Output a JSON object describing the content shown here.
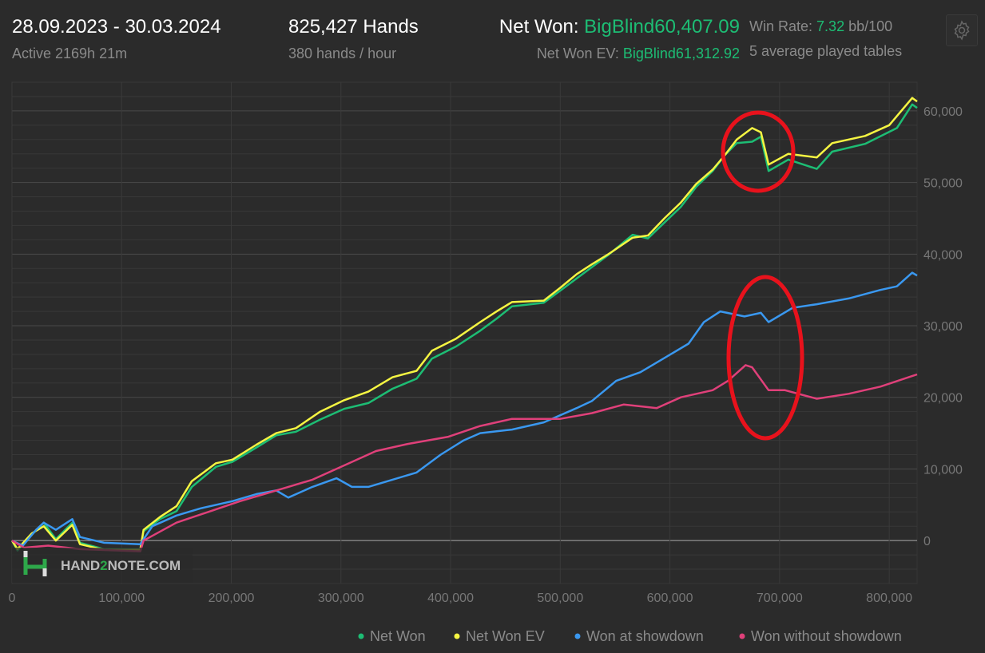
{
  "header": {
    "date_range": "28.09.2023 - 30.03.2024",
    "active": "Active 2169h 21m",
    "hands": "825,427 Hands",
    "hands_per_hour": "380 hands / hour",
    "net_won_label": "Net Won:",
    "net_won_value": "BigBlind60,407.09",
    "net_won_ev_label": "Net Won  EV:",
    "net_won_ev_value": "BigBlind61,312.92",
    "win_rate_label": "Win Rate:",
    "win_rate_value": "7.32",
    "win_rate_unit": "bb/100",
    "tables": "5 average played tables",
    "settings_icon": "gear-icon"
  },
  "watermark": {
    "text_a": "HAND",
    "text_b": "2",
    "text_c": "NOTE.COM"
  },
  "colors": {
    "net_won": "#1dbd74",
    "net_won_ev": "#f5f542",
    "showdown": "#3a98f0",
    "non_showdown": "#e0407a",
    "annotation": "#e8121c",
    "accent": "#1dbd74"
  },
  "chart_data": {
    "type": "line",
    "xlabel": "",
    "ylabel": "",
    "xlim": [
      0,
      825427
    ],
    "ylim": [
      -6000,
      64000
    ],
    "grid": true,
    "legend": "bottom-right",
    "x_ticks": [
      "0",
      "100,000",
      "200,000",
      "300,000",
      "400,000",
      "500,000",
      "600,000",
      "700,000",
      "800,000"
    ],
    "x_tick_values": [
      0,
      100000,
      200000,
      300000,
      400000,
      500000,
      600000,
      700000,
      800000
    ],
    "y_ticks": [
      "0",
      "10,000",
      "20,000",
      "30,000",
      "40,000",
      "50,000",
      "60,000"
    ],
    "y_tick_values": [
      0,
      10000,
      20000,
      30000,
      40000,
      50000,
      60000
    ],
    "series": [
      {
        "name": "Net Won",
        "color": "#1dbd74",
        "points": [
          [
            0,
            0
          ],
          [
            5000,
            -1400
          ],
          [
            18000,
            800
          ],
          [
            29000,
            2500
          ],
          [
            40000,
            200
          ],
          [
            55000,
            2500
          ],
          [
            62000,
            -300
          ],
          [
            84000,
            -1200
          ],
          [
            117000,
            -1200
          ],
          [
            120000,
            1300
          ],
          [
            135000,
            3000
          ],
          [
            150000,
            4100
          ],
          [
            164000,
            7500
          ],
          [
            186000,
            10300
          ],
          [
            201000,
            11000
          ],
          [
            223000,
            13000
          ],
          [
            241000,
            14700
          ],
          [
            259000,
            15200
          ],
          [
            281000,
            16900
          ],
          [
            303000,
            18400
          ],
          [
            325000,
            19200
          ],
          [
            347000,
            21200
          ],
          [
            369000,
            22600
          ],
          [
            383000,
            25400
          ],
          [
            405000,
            27100
          ],
          [
            427000,
            29300
          ],
          [
            442000,
            31000
          ],
          [
            456000,
            32700
          ],
          [
            485000,
            33200
          ],
          [
            500000,
            34900
          ],
          [
            515000,
            36600
          ],
          [
            529000,
            38200
          ],
          [
            544000,
            39900
          ],
          [
            566000,
            42700
          ],
          [
            580000,
            42200
          ],
          [
            595000,
            44400
          ],
          [
            610000,
            46600
          ],
          [
            624000,
            49400
          ],
          [
            639000,
            51600
          ],
          [
            650000,
            53800
          ],
          [
            661000,
            55500
          ],
          [
            675000,
            55700
          ],
          [
            683000,
            56400
          ],
          [
            690000,
            51600
          ],
          [
            708000,
            53200
          ],
          [
            734000,
            51900
          ],
          [
            748000,
            54300
          ],
          [
            778000,
            55400
          ],
          [
            807000,
            57600
          ],
          [
            821000,
            60900
          ],
          [
            825427,
            60407
          ]
        ]
      },
      {
        "name": "Net Won  EV",
        "color": "#f5f542",
        "points": [
          [
            0,
            0
          ],
          [
            5000,
            -1200
          ],
          [
            18000,
            1000
          ],
          [
            29000,
            2000
          ],
          [
            40000,
            0
          ],
          [
            55000,
            2200
          ],
          [
            62000,
            -500
          ],
          [
            84000,
            -1300
          ],
          [
            117000,
            -1300
          ],
          [
            120000,
            1500
          ],
          [
            135000,
            3300
          ],
          [
            150000,
            4800
          ],
          [
            164000,
            8300
          ],
          [
            186000,
            10800
          ],
          [
            201000,
            11300
          ],
          [
            223000,
            13400
          ],
          [
            241000,
            15000
          ],
          [
            259000,
            15700
          ],
          [
            281000,
            18000
          ],
          [
            303000,
            19600
          ],
          [
            325000,
            20800
          ],
          [
            347000,
            22800
          ],
          [
            369000,
            23700
          ],
          [
            383000,
            26500
          ],
          [
            405000,
            28200
          ],
          [
            427000,
            30500
          ],
          [
            442000,
            32000
          ],
          [
            456000,
            33300
          ],
          [
            485000,
            33500
          ],
          [
            500000,
            35300
          ],
          [
            515000,
            37200
          ],
          [
            529000,
            38600
          ],
          [
            544000,
            40000
          ],
          [
            566000,
            42300
          ],
          [
            580000,
            42600
          ],
          [
            595000,
            45000
          ],
          [
            610000,
            47200
          ],
          [
            624000,
            49800
          ],
          [
            639000,
            51800
          ],
          [
            650000,
            53800
          ],
          [
            661000,
            56000
          ],
          [
            675000,
            57600
          ],
          [
            683000,
            57000
          ],
          [
            690000,
            52500
          ],
          [
            708000,
            54000
          ],
          [
            734000,
            53500
          ],
          [
            748000,
            55500
          ],
          [
            778000,
            56500
          ],
          [
            800000,
            58000
          ],
          [
            821000,
            61800
          ],
          [
            825427,
            61313
          ]
        ]
      },
      {
        "name": "Won at showdown",
        "color": "#3a98f0",
        "points": [
          [
            0,
            0
          ],
          [
            10000,
            -700
          ],
          [
            22000,
            1500
          ],
          [
            29000,
            2500
          ],
          [
            40000,
            1500
          ],
          [
            55000,
            3000
          ],
          [
            62000,
            500
          ],
          [
            84000,
            -300
          ],
          [
            117000,
            -500
          ],
          [
            128000,
            2000
          ],
          [
            150000,
            3500
          ],
          [
            172000,
            4500
          ],
          [
            201000,
            5500
          ],
          [
            223000,
            6500
          ],
          [
            241000,
            7000
          ],
          [
            252000,
            6000
          ],
          [
            274000,
            7500
          ],
          [
            296000,
            8700
          ],
          [
            310000,
            7500
          ],
          [
            325000,
            7500
          ],
          [
            347000,
            8500
          ],
          [
            369000,
            9500
          ],
          [
            391000,
            12000
          ],
          [
            412000,
            14000
          ],
          [
            427000,
            15000
          ],
          [
            456000,
            15500
          ],
          [
            485000,
            16500
          ],
          [
            515000,
            18500
          ],
          [
            529000,
            19500
          ],
          [
            551000,
            22300
          ],
          [
            573000,
            23500
          ],
          [
            595000,
            25500
          ],
          [
            617000,
            27500
          ],
          [
            631000,
            30500
          ],
          [
            646000,
            32000
          ],
          [
            668000,
            31300
          ],
          [
            683000,
            31800
          ],
          [
            690000,
            30500
          ],
          [
            712000,
            32500
          ],
          [
            734000,
            33000
          ],
          [
            763000,
            33800
          ],
          [
            792000,
            35000
          ],
          [
            807000,
            35500
          ],
          [
            821000,
            37400
          ],
          [
            825427,
            37000
          ]
        ]
      },
      {
        "name": "Won without showdown",
        "color": "#e0407a",
        "points": [
          [
            0,
            0
          ],
          [
            11000,
            -1000
          ],
          [
            33000,
            -700
          ],
          [
            62000,
            -1200
          ],
          [
            117000,
            -1500
          ],
          [
            120000,
            0
          ],
          [
            150000,
            2500
          ],
          [
            179000,
            4000
          ],
          [
            208000,
            5500
          ],
          [
            230000,
            6500
          ],
          [
            252000,
            7500
          ],
          [
            274000,
            8500
          ],
          [
            303000,
            10500
          ],
          [
            332000,
            12500
          ],
          [
            361000,
            13500
          ],
          [
            398000,
            14500
          ],
          [
            427000,
            16000
          ],
          [
            456000,
            17000
          ],
          [
            485000,
            17000
          ],
          [
            500000,
            17000
          ],
          [
            529000,
            17800
          ],
          [
            558000,
            19000
          ],
          [
            588000,
            18500
          ],
          [
            610000,
            20000
          ],
          [
            639000,
            21000
          ],
          [
            653000,
            22300
          ],
          [
            669000,
            24500
          ],
          [
            675000,
            24200
          ],
          [
            690000,
            21000
          ],
          [
            705000,
            21000
          ],
          [
            734000,
            19800
          ],
          [
            763000,
            20500
          ],
          [
            792000,
            21500
          ],
          [
            825427,
            23200
          ]
        ]
      }
    ]
  }
}
